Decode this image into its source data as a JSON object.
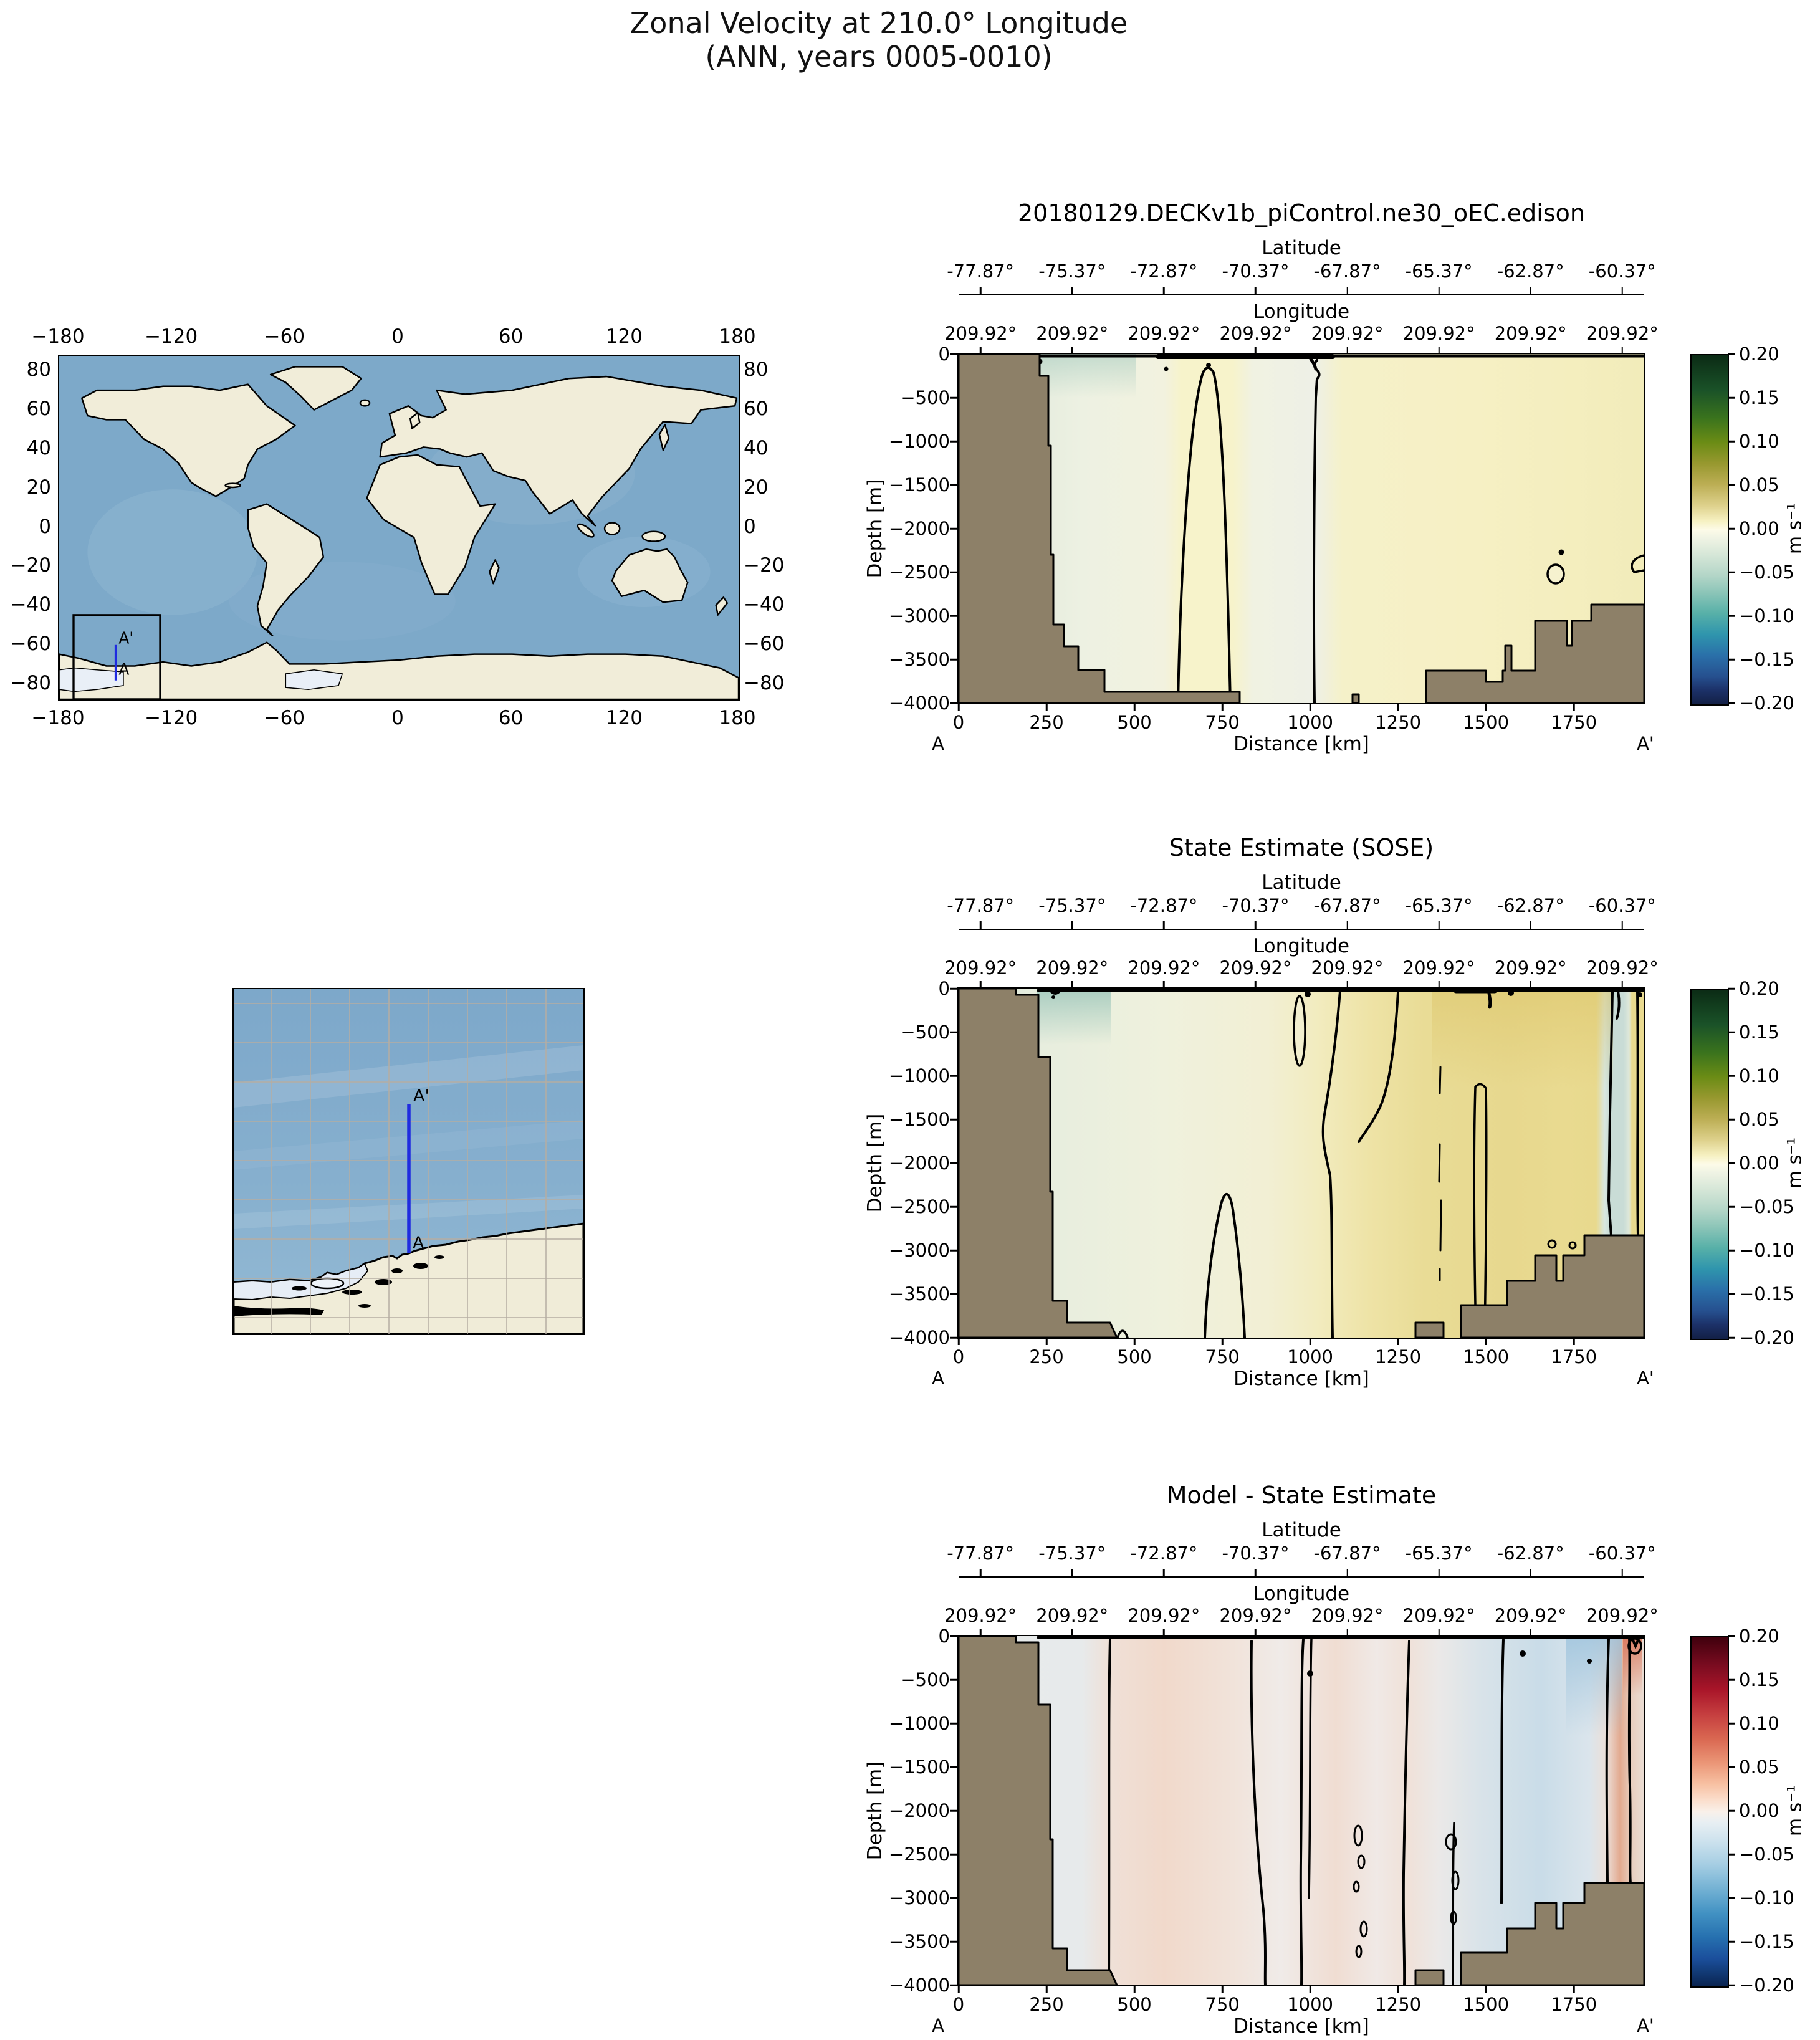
{
  "figure": {
    "title_line1": "Zonal Velocity at 210.0° Longitude",
    "title_line2": "(ANN, years 0005-0010)"
  },
  "axes": {
    "lat_label": "Latitude",
    "lat_ticks": [
      "-77.87°",
      "-75.37°",
      "-72.87°",
      "-70.37°",
      "-67.87°",
      "-65.37°",
      "-62.87°",
      "-60.37°"
    ],
    "lon_label": "Longitude",
    "lon_ticks": [
      "209.92°",
      "209.92°",
      "209.92°",
      "209.92°",
      "209.92°",
      "209.92°",
      "209.92°",
      "209.92°"
    ],
    "depth_label": "Depth [m]",
    "depth_ticks": [
      "0",
      "−500",
      "−1000",
      "−1500",
      "−2000",
      "−2500",
      "−3000",
      "−3500",
      "−4000"
    ],
    "dist_label": "Distance [km]",
    "dist_ticks": [
      "0",
      "250",
      "500",
      "750",
      "1000",
      "1250",
      "1500",
      "1750"
    ],
    "dist_max_km": 1950,
    "start_label": "A",
    "end_label": "A'",
    "cbar_ticks": [
      "0.20",
      "0.15",
      "0.10",
      "0.05",
      "0.00",
      "−0.05",
      "−0.10",
      "−0.15",
      "−0.20"
    ],
    "cbar_unit": "m s⁻¹"
  },
  "panels": [
    {
      "title": "20180129.DECKv1b_piControl.ne30_oEC.edison",
      "colormap": "dark-green / yellow / cream / teal / navy diverging"
    },
    {
      "title": "State Estimate (SOSE)",
      "colormap": "dark-green / yellow / cream / teal / navy diverging"
    },
    {
      "title": "Model - State Estimate",
      "colormap": "red / white / blue diverging (RdBu)"
    }
  ],
  "world_map": {
    "lon_ticks": [
      "−180",
      "−120",
      "−60",
      "0",
      "60",
      "120",
      "180"
    ],
    "lat_ticks": [
      "80",
      "60",
      "40",
      "20",
      "0",
      "−20",
      "−40",
      "−60",
      "−80"
    ],
    "transect_start": "A",
    "transect_end": "A'"
  },
  "inset_map": {
    "transect_start": "A",
    "transect_end": "A'"
  },
  "colors": {
    "land_section": "#8d8068",
    "map_ocean": "#7da9c9",
    "map_land": "#f1edd9",
    "contour": "#000000",
    "transect_blue": "#1f2be0"
  },
  "chart_data": [
    {
      "type": "heatmap",
      "name": "model-section",
      "title": "20180129.DECKv1b_piControl.ne30_oEC.edison",
      "x_axis": {
        "label": "Distance [km]",
        "range": [
          0,
          1950
        ],
        "tick_values": [
          0,
          250,
          500,
          750,
          1000,
          1250,
          1500,
          1750
        ]
      },
      "y_axis": {
        "label": "Depth [m]",
        "range": [
          -4000,
          0
        ],
        "tick_values": [
          0,
          -500,
          -1000,
          -1500,
          -2000,
          -2500,
          -3000,
          -3500,
          -4000
        ]
      },
      "top_axis_latitude_deg": [
        -77.87,
        -75.37,
        -72.87,
        -70.37,
        -67.87,
        -65.37,
        -62.87,
        -60.37
      ],
      "top_axis_longitude_deg": [
        209.92,
        209.92,
        209.92,
        209.92,
        209.92,
        209.92,
        209.92,
        209.92
      ],
      "colorbar": {
        "label": "m s⁻¹",
        "range": [
          -0.2,
          0.2
        ],
        "tick_values": [
          0.2,
          0.15,
          0.1,
          0.05,
          0.0,
          -0.05,
          -0.1,
          -0.15,
          -0.2
        ]
      },
      "endpoints": [
        "A",
        "A'"
      ],
      "contour_note": "black contour = 0.00 m s⁻¹",
      "bathymetry_profile_km_depth_m": [
        [
          0,
          0
        ],
        [
          230,
          -250
        ],
        [
          255,
          -1050
        ],
        [
          262,
          -2300
        ],
        [
          270,
          -3100
        ],
        [
          300,
          -3350
        ],
        [
          340,
          -3620
        ],
        [
          415,
          -3870
        ],
        [
          800,
          -3870
        ],
        [
          815,
          -4000
        ],
        [
          1325,
          -4000
        ],
        [
          1330,
          -3630
        ],
        [
          1500,
          -3760
        ],
        [
          1555,
          -3340
        ],
        [
          1575,
          -3630
        ],
        [
          1640,
          -3060
        ],
        [
          1730,
          -3350
        ],
        [
          1800,
          -2870
        ],
        [
          1950,
          -2870
        ]
      ],
      "sampled_values_m_s": [
        {
          "km": 300,
          "depth_m": -100,
          "value": -0.05
        },
        {
          "km": 400,
          "depth_m": -1500,
          "value": -0.01
        },
        {
          "km": 700,
          "depth_m": -1500,
          "value": 0.01
        },
        {
          "km": 900,
          "depth_m": -1500,
          "value": -0.005
        },
        {
          "km": 1200,
          "depth_m": -500,
          "value": 0.02
        },
        {
          "km": 1600,
          "depth_m": -1500,
          "value": 0.02
        },
        {
          "km": 1900,
          "depth_m": -500,
          "value": 0.02
        }
      ]
    },
    {
      "type": "heatmap",
      "name": "sose-section",
      "title": "State Estimate (SOSE)",
      "x_axis": {
        "label": "Distance [km]",
        "range": [
          0,
          1950
        ],
        "tick_values": [
          0,
          250,
          500,
          750,
          1000,
          1250,
          1500,
          1750
        ]
      },
      "y_axis": {
        "label": "Depth [m]",
        "range": [
          -4000,
          0
        ],
        "tick_values": [
          0,
          -500,
          -1000,
          -1500,
          -2000,
          -2500,
          -3000,
          -3500,
          -4000
        ]
      },
      "top_axis_latitude_deg": [
        -77.87,
        -75.37,
        -72.87,
        -70.37,
        -67.87,
        -65.37,
        -62.87,
        -60.37
      ],
      "top_axis_longitude_deg": [
        209.92,
        209.92,
        209.92,
        209.92,
        209.92,
        209.92,
        209.92,
        209.92
      ],
      "colorbar": {
        "label": "m s⁻¹",
        "range": [
          -0.2,
          0.2
        ],
        "tick_values": [
          0.2,
          0.15,
          0.1,
          0.05,
          0.0,
          -0.05,
          -0.1,
          -0.15,
          -0.2
        ]
      },
      "endpoints": [
        "A",
        "A'"
      ],
      "contour_note": "black contour = 0.00 m s⁻¹",
      "bathymetry_profile_km_depth_m": [
        [
          0,
          0
        ],
        [
          230,
          -780
        ],
        [
          262,
          -2330
        ],
        [
          270,
          -3580
        ],
        [
          310,
          -3830
        ],
        [
          430,
          -3830
        ],
        [
          450,
          -4000
        ],
        [
          1300,
          -4000
        ],
        [
          1305,
          -3830
        ],
        [
          1380,
          -3830
        ],
        [
          1390,
          -4000
        ],
        [
          1428,
          -4000
        ],
        [
          1430,
          -3630
        ],
        [
          1560,
          -3630
        ],
        [
          1560,
          -3350
        ],
        [
          1640,
          -3350
        ],
        [
          1640,
          -3060
        ],
        [
          1780,
          -3060
        ],
        [
          1850,
          -2830
        ],
        [
          1950,
          -2830
        ]
      ],
      "sampled_values_m_s": [
        {
          "km": 300,
          "depth_m": -500,
          "value": -0.02
        },
        {
          "km": 700,
          "depth_m": -1500,
          "value": -0.01
        },
        {
          "km": 970,
          "depth_m": -400,
          "value": 0.01
        },
        {
          "km": 1100,
          "depth_m": -2000,
          "value": 0.02
        },
        {
          "km": 1400,
          "depth_m": -1000,
          "value": 0.04
        },
        {
          "km": 1700,
          "depth_m": -500,
          "value": 0.06
        },
        {
          "km": 1890,
          "depth_m": -1000,
          "value": -0.05
        },
        {
          "km": 1940,
          "depth_m": -300,
          "value": 0.05
        }
      ]
    },
    {
      "type": "heatmap",
      "name": "model-minus-sose-section",
      "title": "Model - State Estimate",
      "x_axis": {
        "label": "Distance [km]",
        "range": [
          0,
          1950
        ],
        "tick_values": [
          0,
          250,
          500,
          750,
          1000,
          1250,
          1500,
          1750
        ]
      },
      "y_axis": {
        "label": "Depth [m]",
        "range": [
          -4000,
          0
        ],
        "tick_values": [
          0,
          -500,
          -1000,
          -1500,
          -2000,
          -2500,
          -3000,
          -3500,
          -4000
        ]
      },
      "top_axis_latitude_deg": [
        -77.87,
        -75.37,
        -72.87,
        -70.37,
        -67.87,
        -65.37,
        -62.87,
        -60.37
      ],
      "top_axis_longitude_deg": [
        209.92,
        209.92,
        209.92,
        209.92,
        209.92,
        209.92,
        209.92,
        209.92
      ],
      "colorbar": {
        "label": "m s⁻¹",
        "range": [
          -0.2,
          0.2
        ],
        "tick_values": [
          0.2,
          0.15,
          0.1,
          0.05,
          0.0,
          -0.05,
          -0.1,
          -0.15,
          -0.2
        ]
      },
      "endpoints": [
        "A",
        "A'"
      ],
      "contour_note": "black contour = 0.00 m s⁻¹",
      "bathymetry_profile_km_depth_m": [
        [
          0,
          0
        ],
        [
          230,
          -780
        ],
        [
          262,
          -2330
        ],
        [
          270,
          -3580
        ],
        [
          310,
          -3830
        ],
        [
          430,
          -3830
        ],
        [
          450,
          -4000
        ],
        [
          1300,
          -4000
        ],
        [
          1305,
          -3830
        ],
        [
          1380,
          -3830
        ],
        [
          1390,
          -4000
        ],
        [
          1428,
          -4000
        ],
        [
          1430,
          -3630
        ],
        [
          1560,
          -3630
        ],
        [
          1560,
          -3350
        ],
        [
          1640,
          -3350
        ],
        [
          1640,
          -3060
        ],
        [
          1780,
          -3060
        ],
        [
          1850,
          -2830
        ],
        [
          1950,
          -2830
        ]
      ],
      "sampled_values_m_s": [
        {
          "km": 300,
          "depth_m": -500,
          "value": -0.01
        },
        {
          "km": 600,
          "depth_m": -1000,
          "value": 0.03
        },
        {
          "km": 900,
          "depth_m": -2000,
          "value": 0.0
        },
        {
          "km": 1100,
          "depth_m": -500,
          "value": 0.02
        },
        {
          "km": 1300,
          "depth_m": -1500,
          "value": 0.01
        },
        {
          "km": 1700,
          "depth_m": -500,
          "value": -0.06
        },
        {
          "km": 1860,
          "depth_m": -1000,
          "value": -0.02
        },
        {
          "km": 1920,
          "depth_m": -150,
          "value": 0.12
        }
      ]
    },
    {
      "type": "map",
      "name": "world-locator-map",
      "lon_tick_values": [
        -180,
        -120,
        -60,
        0,
        60,
        120,
        180
      ],
      "lat_tick_values": [
        80,
        60,
        40,
        20,
        0,
        -20,
        -40,
        -60,
        -80
      ],
      "region_box": {
        "lon_min": -172,
        "lon_max": -126,
        "lat_min": -90,
        "lat_max": -45
      },
      "transect": {
        "lon_deg": 210.0,
        "lat_start": -78.0,
        "lat_end": -60.4,
        "label_start": "A",
        "label_end": "A'"
      }
    },
    {
      "type": "map",
      "name": "antarctic-inset-map",
      "shows": "zoomed Southern Ocean / Antarctic coast sector with transect A–A' at 210.0°E",
      "transect_labels": [
        "A",
        "A'"
      ]
    }
  ]
}
